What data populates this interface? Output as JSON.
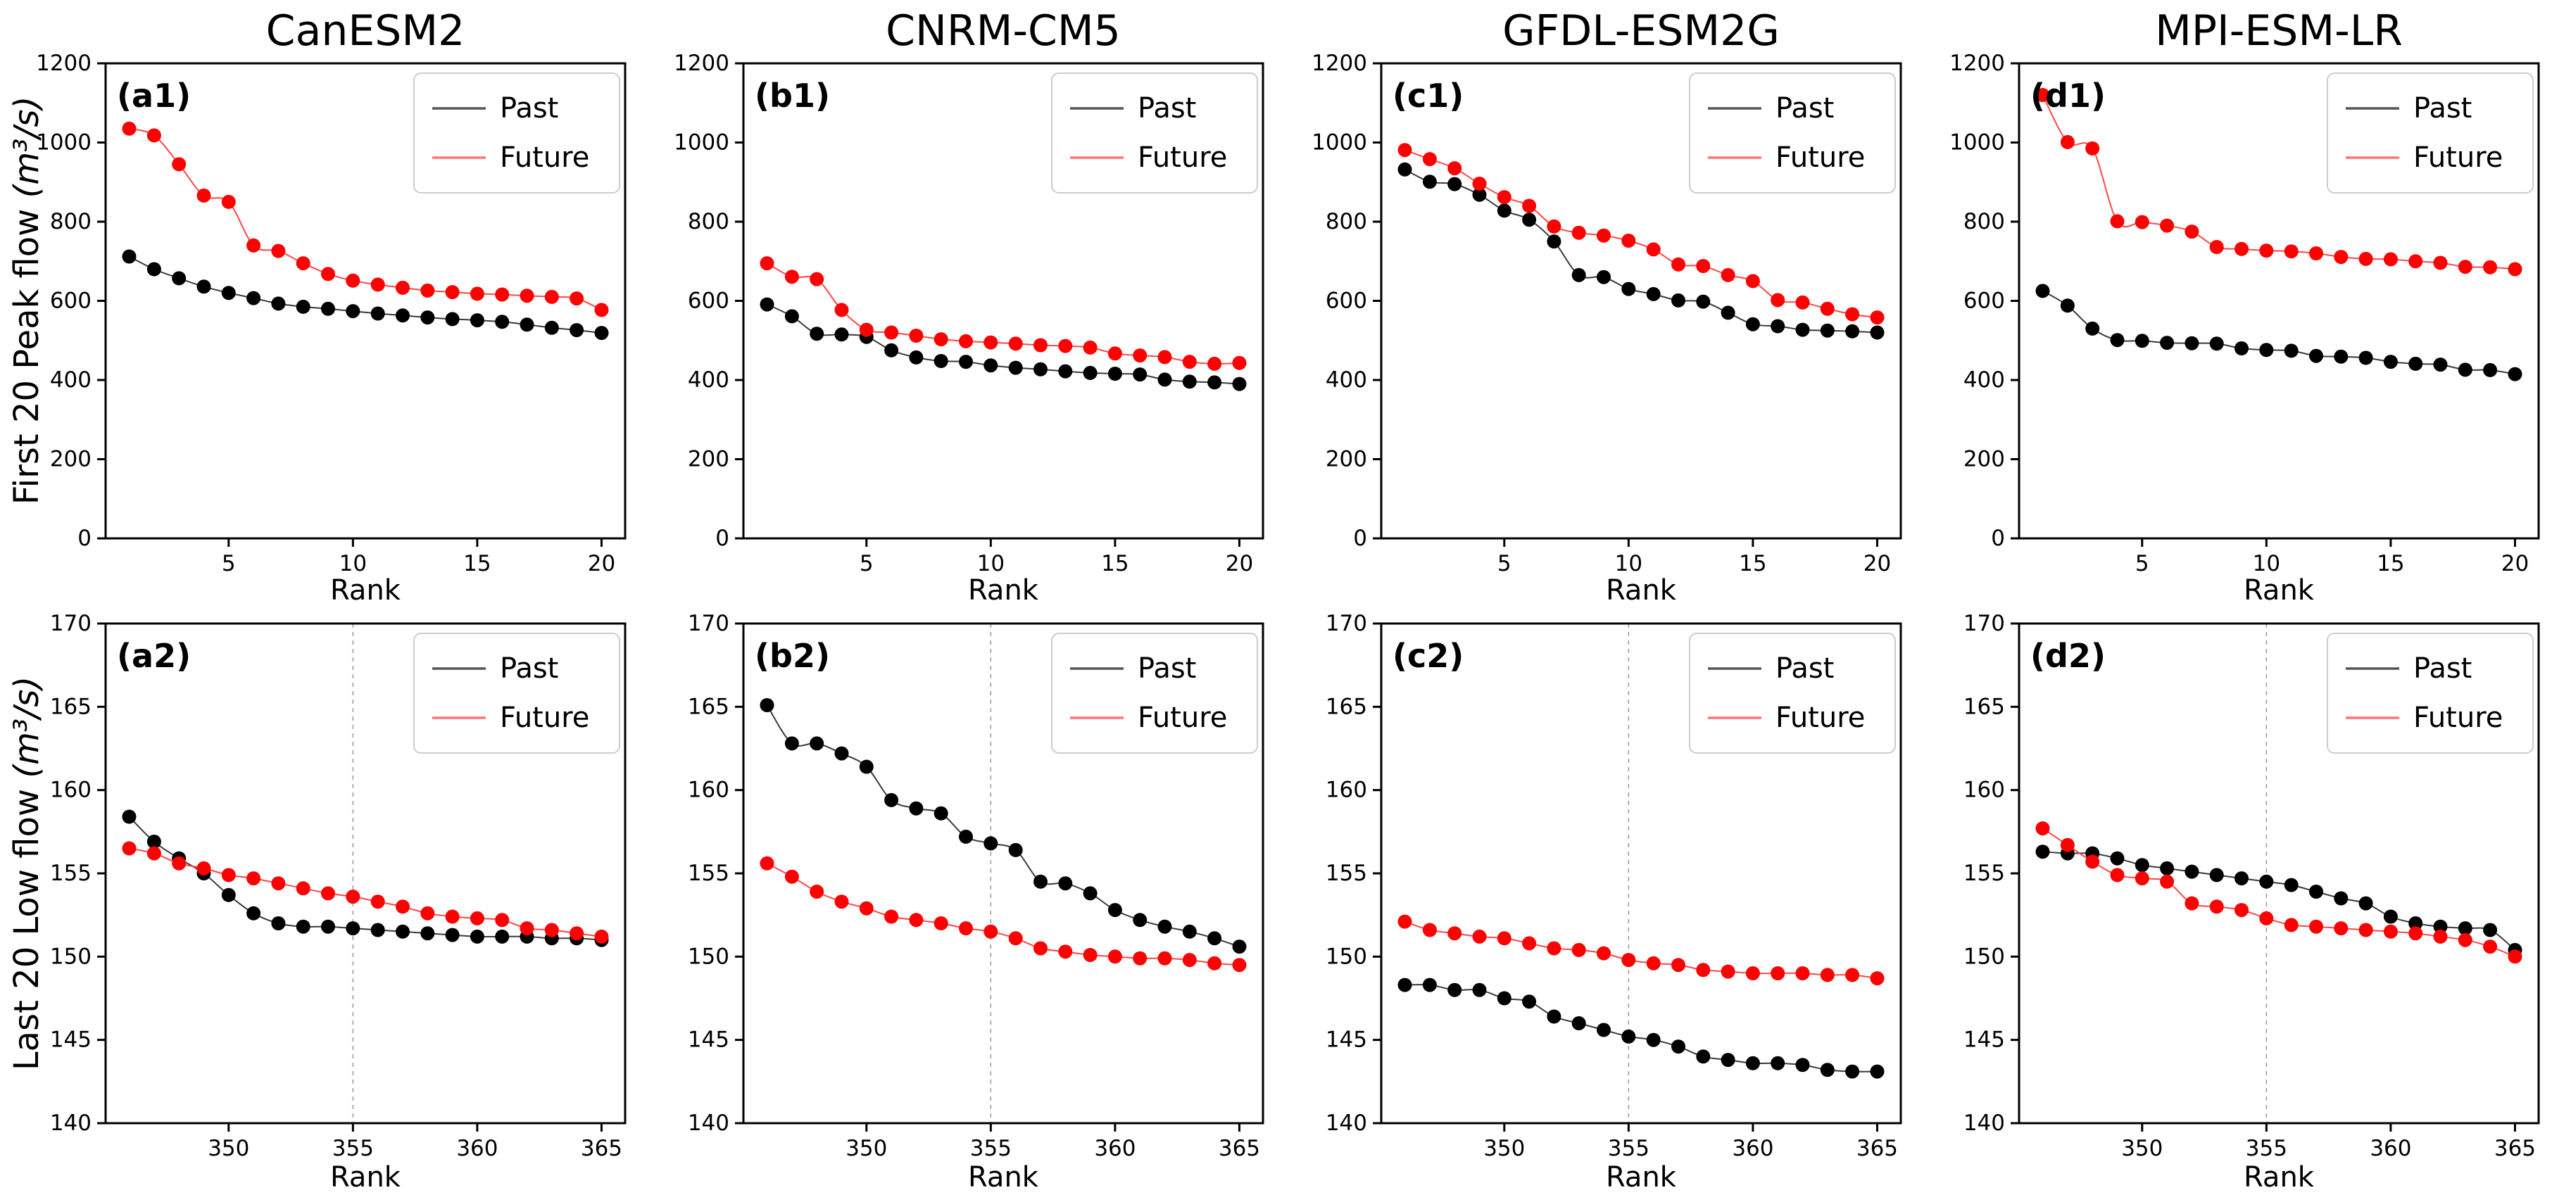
{
  "figure": {
    "ylabel_peak": "First 20 Peak flow ",
    "ylabel_low": "Last 20 Low flow ",
    "ylabel_unit": "(m³/s)",
    "xlabel": "Rank",
    "legend_labels": [
      "Past",
      "Future"
    ],
    "colors": {
      "past_marker": "#000000",
      "past_line": "#3a3a3a",
      "past_legend": "#555555",
      "future_marker": "#ff0000",
      "future_line": "#ff4646",
      "future_legend": "#ff7575",
      "vline": "#999999",
      "spine": "#000000",
      "legend_border": "#cccccc",
      "background": "#ffffff"
    }
  },
  "chart_data": [
    {
      "id": "a1",
      "type": "scatter",
      "title": "CanESM2",
      "panel_label": "(a1)",
      "xlabel": "Rank",
      "xlim": [
        0.05,
        20.95
      ],
      "ylim": [
        0,
        1200
      ],
      "xticks": [
        5,
        10,
        15,
        20
      ],
      "yticks": [
        0,
        200,
        400,
        600,
        800,
        1000,
        1200
      ],
      "vline": null,
      "x": [
        1,
        2,
        3,
        4,
        5,
        6,
        7,
        8,
        9,
        10,
        11,
        12,
        13,
        14,
        15,
        16,
        17,
        18,
        19,
        20
      ],
      "series": [
        {
          "name": "Past",
          "color_key": "past",
          "values": [
            712,
            680,
            657,
            636,
            620,
            607,
            593,
            585,
            580,
            574,
            568,
            563,
            558,
            554,
            551,
            547,
            540,
            532,
            526,
            519
          ]
        },
        {
          "name": "Future",
          "color_key": "future",
          "values": [
            1035,
            1018,
            945,
            866,
            850,
            740,
            726,
            695,
            668,
            651,
            641,
            633,
            626,
            622,
            618,
            616,
            613,
            610,
            606,
            577
          ]
        }
      ]
    },
    {
      "id": "b1",
      "type": "scatter",
      "title": "CNRM-CM5",
      "panel_label": "(b1)",
      "xlabel": "Rank",
      "xlim": [
        0.05,
        20.95
      ],
      "ylim": [
        0,
        1200
      ],
      "xticks": [
        5,
        10,
        15,
        20
      ],
      "yticks": [
        0,
        200,
        400,
        600,
        800,
        1000,
        1200
      ],
      "vline": null,
      "x": [
        1,
        2,
        3,
        4,
        5,
        6,
        7,
        8,
        9,
        10,
        11,
        12,
        13,
        14,
        15,
        16,
        17,
        18,
        19,
        20
      ],
      "series": [
        {
          "name": "Past",
          "color_key": "past",
          "values": [
            591,
            561,
            517,
            515,
            509,
            475,
            457,
            448,
            446,
            437,
            431,
            427,
            422,
            418,
            416,
            414,
            401,
            396,
            394,
            390
          ]
        },
        {
          "name": "Future",
          "color_key": "future",
          "values": [
            695,
            661,
            655,
            577,
            527,
            520,
            512,
            503,
            498,
            495,
            492,
            488,
            486,
            482,
            467,
            462,
            458,
            446,
            441,
            443
          ]
        }
      ]
    },
    {
      "id": "c1",
      "type": "scatter",
      "title": "GFDL-ESM2G",
      "panel_label": "(c1)",
      "xlabel": "Rank",
      "xlim": [
        0.05,
        20.95
      ],
      "ylim": [
        0,
        1200
      ],
      "xticks": [
        5,
        10,
        15,
        20
      ],
      "yticks": [
        0,
        200,
        400,
        600,
        800,
        1000,
        1200
      ],
      "vline": null,
      "x": [
        1,
        2,
        3,
        4,
        5,
        6,
        7,
        8,
        9,
        10,
        11,
        12,
        13,
        14,
        15,
        16,
        17,
        18,
        19,
        20
      ],
      "series": [
        {
          "name": "Past",
          "color_key": "past",
          "values": [
            932,
            901,
            895,
            868,
            828,
            805,
            750,
            665,
            660,
            630,
            617,
            601,
            598,
            570,
            541,
            536,
            527,
            525,
            523,
            520
          ]
        },
        {
          "name": "Future",
          "color_key": "future",
          "values": [
            981,
            958,
            935,
            896,
            862,
            840,
            788,
            772,
            765,
            752,
            730,
            692,
            688,
            665,
            650,
            602,
            596,
            580,
            566,
            558
          ]
        }
      ]
    },
    {
      "id": "d1",
      "type": "scatter",
      "title": "MPI-ESM-LR",
      "panel_label": "(d1)",
      "xlabel": "Rank",
      "xlim": [
        0.05,
        20.95
      ],
      "ylim": [
        0,
        1200
      ],
      "xticks": [
        5,
        10,
        15,
        20
      ],
      "yticks": [
        0,
        200,
        400,
        600,
        800,
        1000,
        1200
      ],
      "vline": null,
      "x": [
        1,
        2,
        3,
        4,
        5,
        6,
        7,
        8,
        9,
        10,
        11,
        12,
        13,
        14,
        15,
        16,
        17,
        18,
        19,
        20
      ],
      "series": [
        {
          "name": "Past",
          "color_key": "past",
          "values": [
            625,
            588,
            530,
            501,
            499,
            494,
            493,
            492,
            480,
            476,
            474,
            461,
            459,
            456,
            446,
            441,
            439,
            426,
            425,
            415
          ]
        },
        {
          "name": "Future",
          "color_key": "future",
          "values": [
            1120,
            1001,
            985,
            801,
            799,
            790,
            775,
            736,
            731,
            727,
            725,
            720,
            711,
            706,
            705,
            700,
            696,
            686,
            685,
            680
          ]
        }
      ]
    },
    {
      "id": "a2",
      "type": "scatter",
      "title": "",
      "panel_label": "(a2)",
      "xlabel": "Rank",
      "xlim": [
        345.05,
        365.95
      ],
      "ylim": [
        140,
        170
      ],
      "xticks": [
        350,
        355,
        360,
        365
      ],
      "yticks": [
        140,
        145,
        150,
        155,
        160,
        165,
        170
      ],
      "vline": 355,
      "x": [
        346,
        347,
        348,
        349,
        350,
        351,
        352,
        353,
        354,
        355,
        356,
        357,
        358,
        359,
        360,
        361,
        362,
        363,
        364,
        365
      ],
      "series": [
        {
          "name": "Past",
          "color_key": "past",
          "values": [
            158.4,
            156.9,
            155.9,
            155.0,
            153.7,
            152.6,
            152.0,
            151.8,
            151.8,
            151.7,
            151.6,
            151.5,
            151.4,
            151.3,
            151.2,
            151.2,
            151.2,
            151.1,
            151.1,
            151.0
          ]
        },
        {
          "name": "Future",
          "color_key": "future",
          "values": [
            156.5,
            156.2,
            155.6,
            155.3,
            154.9,
            154.7,
            154.4,
            154.1,
            153.8,
            153.6,
            153.3,
            153.0,
            152.6,
            152.4,
            152.3,
            152.2,
            151.7,
            151.6,
            151.4,
            151.2
          ]
        }
      ]
    },
    {
      "id": "b2",
      "type": "scatter",
      "title": "",
      "panel_label": "(b2)",
      "xlabel": "Rank",
      "xlim": [
        345.05,
        365.95
      ],
      "ylim": [
        140,
        170
      ],
      "xticks": [
        350,
        355,
        360,
        365
      ],
      "yticks": [
        140,
        145,
        150,
        155,
        160,
        165,
        170
      ],
      "vline": 355,
      "x": [
        346,
        347,
        348,
        349,
        350,
        351,
        352,
        353,
        354,
        355,
        356,
        357,
        358,
        359,
        360,
        361,
        362,
        363,
        364,
        365
      ],
      "series": [
        {
          "name": "Past",
          "color_key": "past",
          "values": [
            165.1,
            162.8,
            162.8,
            162.2,
            161.4,
            159.4,
            158.9,
            158.6,
            157.2,
            156.8,
            156.4,
            154.5,
            154.4,
            153.8,
            152.8,
            152.2,
            151.8,
            151.5,
            151.1,
            150.6
          ]
        },
        {
          "name": "Future",
          "color_key": "future",
          "values": [
            155.6,
            154.8,
            153.9,
            153.3,
            152.9,
            152.4,
            152.2,
            152.0,
            151.7,
            151.5,
            151.1,
            150.5,
            150.3,
            150.1,
            150.0,
            149.9,
            149.9,
            149.8,
            149.6,
            149.5
          ]
        }
      ]
    },
    {
      "id": "c2",
      "type": "scatter",
      "title": "",
      "panel_label": "(c2)",
      "xlabel": "Rank",
      "xlim": [
        345.05,
        365.95
      ],
      "ylim": [
        140,
        170
      ],
      "xticks": [
        350,
        355,
        360,
        365
      ],
      "yticks": [
        140,
        145,
        150,
        155,
        160,
        165,
        170
      ],
      "vline": 355,
      "x": [
        346,
        347,
        348,
        349,
        350,
        351,
        352,
        353,
        354,
        355,
        356,
        357,
        358,
        359,
        360,
        361,
        362,
        363,
        364,
        365
      ],
      "series": [
        {
          "name": "Past",
          "color_key": "past",
          "values": [
            148.3,
            148.3,
            148.0,
            148.0,
            147.5,
            147.3,
            146.4,
            146.0,
            145.6,
            145.2,
            145.0,
            144.6,
            144.0,
            143.8,
            143.6,
            143.6,
            143.5,
            143.2,
            143.1,
            143.1
          ]
        },
        {
          "name": "Future",
          "color_key": "future",
          "values": [
            152.1,
            151.6,
            151.4,
            151.2,
            151.1,
            150.8,
            150.5,
            150.4,
            150.2,
            149.8,
            149.6,
            149.5,
            149.2,
            149.1,
            149.0,
            149.0,
            149.0,
            148.9,
            148.9,
            148.7
          ]
        }
      ]
    },
    {
      "id": "d2",
      "type": "scatter",
      "title": "",
      "panel_label": "(d2)",
      "xlabel": "Rank",
      "xlim": [
        345.05,
        365.95
      ],
      "ylim": [
        140,
        170
      ],
      "xticks": [
        350,
        355,
        360,
        365
      ],
      "yticks": [
        140,
        145,
        150,
        155,
        160,
        165,
        170
      ],
      "vline": 355,
      "x": [
        346,
        347,
        348,
        349,
        350,
        351,
        352,
        353,
        354,
        355,
        356,
        357,
        358,
        359,
        360,
        361,
        362,
        363,
        364,
        365
      ],
      "series": [
        {
          "name": "Past",
          "color_key": "past",
          "values": [
            156.3,
            156.2,
            156.2,
            155.9,
            155.5,
            155.3,
            155.1,
            154.9,
            154.7,
            154.5,
            154.3,
            153.9,
            153.5,
            153.2,
            152.4,
            152.0,
            151.8,
            151.7,
            151.6,
            150.4
          ]
        },
        {
          "name": "Future",
          "color_key": "future",
          "values": [
            157.7,
            156.7,
            155.7,
            154.9,
            154.7,
            154.5,
            153.2,
            153.0,
            152.8,
            152.3,
            151.9,
            151.8,
            151.7,
            151.6,
            151.5,
            151.4,
            151.2,
            151.0,
            150.6,
            150.0
          ]
        }
      ]
    }
  ]
}
